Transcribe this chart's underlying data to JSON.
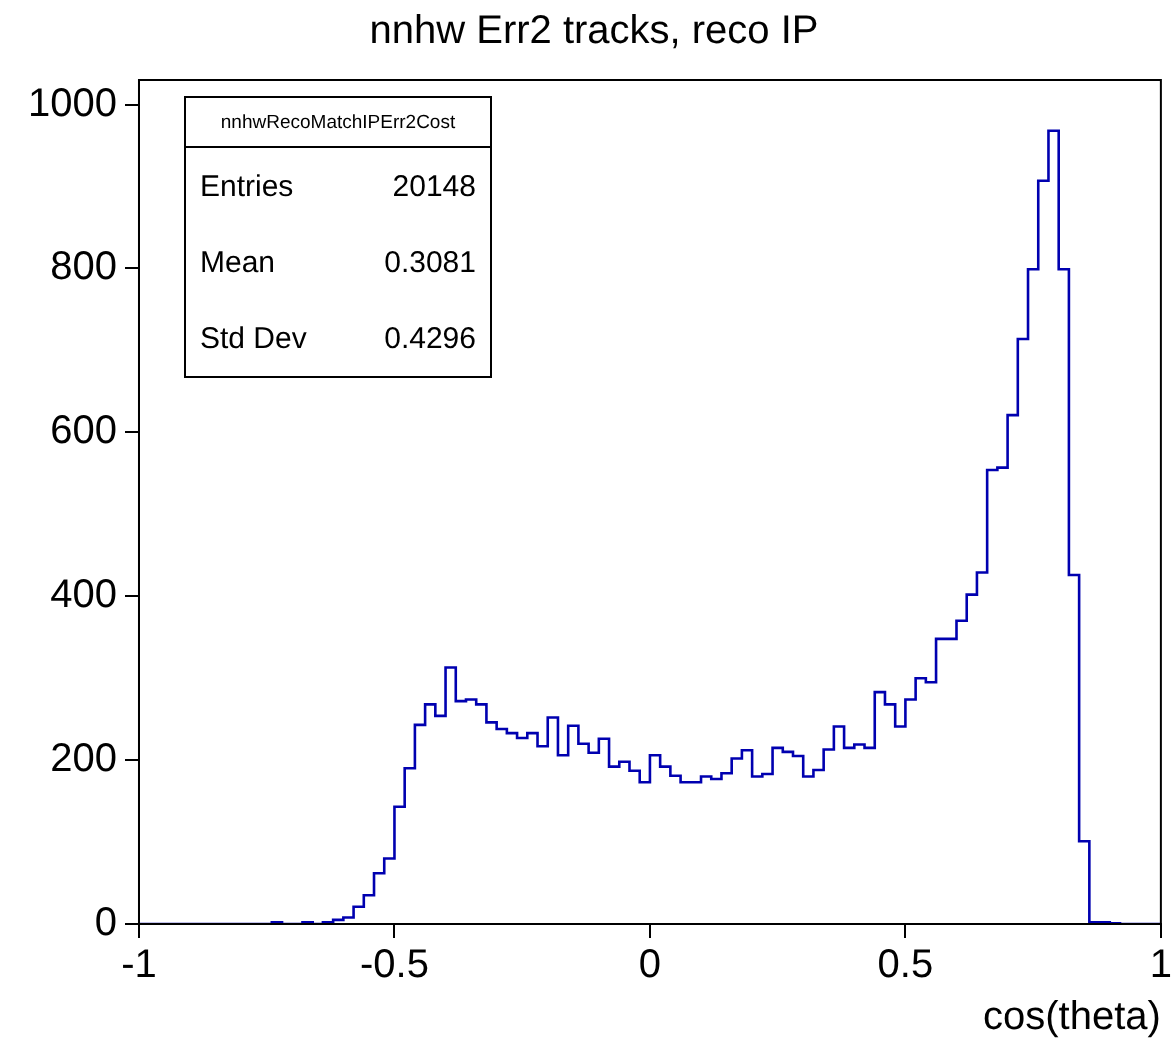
{
  "chart_data": {
    "type": "histogram",
    "title": "nnhw Err2 tracks, reco IP",
    "xlabel": "cos(theta)",
    "bins": [
      -1,
      -0.98,
      -0.96,
      -0.94,
      -0.92,
      -0.9,
      -0.88,
      -0.86,
      -0.84,
      -0.82,
      -0.8,
      -0.78,
      -0.76,
      -0.74,
      -0.72,
      -0.7,
      -0.68,
      -0.66,
      -0.64,
      -0.62,
      -0.6,
      -0.58,
      -0.56,
      -0.54,
      -0.52,
      -0.5,
      -0.48,
      -0.46,
      -0.44,
      -0.42,
      -0.4,
      -0.38,
      -0.36,
      -0.34,
      -0.32,
      -0.3,
      -0.28,
      -0.26,
      -0.24,
      -0.22,
      -0.2,
      -0.18,
      -0.16,
      -0.14,
      -0.12,
      -0.1,
      -0.08,
      -0.06,
      -0.04,
      -0.02,
      0,
      0.02,
      0.04,
      0.06,
      0.08,
      0.1,
      0.12,
      0.14,
      0.16,
      0.18,
      0.2,
      0.22,
      0.24,
      0.26,
      0.28,
      0.3,
      0.32,
      0.34,
      0.36,
      0.38,
      0.4,
      0.42,
      0.44,
      0.46,
      0.48,
      0.5,
      0.52,
      0.54,
      0.56,
      0.58,
      0.6,
      0.62,
      0.64,
      0.66,
      0.68,
      0.7,
      0.72,
      0.74,
      0.76,
      0.78,
      0.8,
      0.82,
      0.84,
      0.86,
      0.88,
      0.9,
      0.92,
      0.94,
      0.96,
      0.98,
      1
    ],
    "values": [
      0,
      0,
      0,
      0,
      0,
      0,
      0,
      0,
      0,
      0,
      0,
      0,
      0,
      2,
      0,
      0,
      2,
      0,
      2,
      5,
      8,
      21,
      35,
      62,
      80,
      143,
      190,
      243,
      268,
      254,
      313,
      272,
      274,
      268,
      246,
      238,
      233,
      227,
      233,
      217,
      252,
      206,
      242,
      220,
      209,
      226,
      192,
      198,
      187,
      173,
      206,
      192,
      181,
      173,
      173,
      180,
      177,
      184,
      202,
      212,
      180,
      183,
      215,
      210,
      205,
      180,
      188,
      213,
      241,
      215,
      219,
      215,
      283,
      268,
      241,
      274,
      300,
      295,
      348,
      348,
      370,
      402,
      429,
      554,
      557,
      621,
      714,
      799,
      907,
      968,
      799,
      426,
      101,
      2,
      2,
      1,
      0,
      0,
      0,
      0
    ],
    "color": "#0000b0",
    "xlim": [
      -1,
      1
    ],
    "ylim": [
      0,
      1030
    ],
    "xticks": [
      -1,
      -0.5,
      0,
      0.5,
      1
    ],
    "yticks": [
      0,
      200,
      400,
      600,
      800,
      1000
    ],
    "annotations": [
      "nnhwRecoMatchIPErr2Cost",
      "Entries",
      "20148",
      "Mean",
      "0.3081",
      "Std Dev",
      "0.4296"
    ]
  }
}
